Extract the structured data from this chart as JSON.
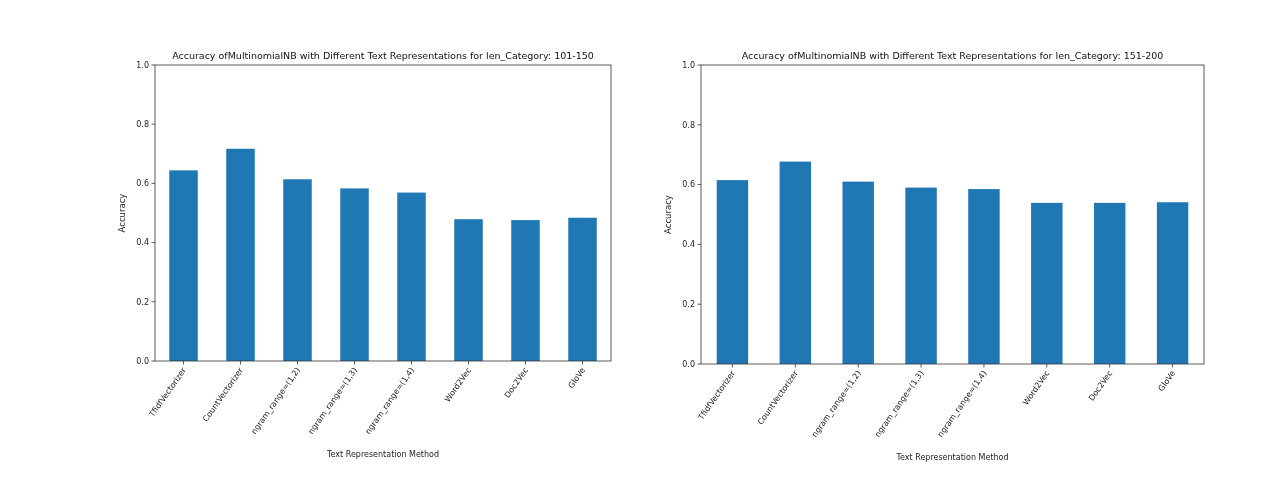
{
  "chart_data": [
    {
      "type": "bar",
      "title": "Accuracy ofMultinomialNB with Different Text Representations for len_Category: 101-150",
      "xlabel": "Text Representation Method",
      "ylabel": "Accuracy",
      "categories": [
        "TfidfVectorizer",
        "CountVectorizer",
        "ngram_range=(1,2)",
        "ngram_range=(1,3)",
        "ngram_range=(1,4)",
        "Word2Vec",
        "Doc2Vec",
        "GloVe"
      ],
      "values": [
        0.644,
        0.717,
        0.614,
        0.583,
        0.569,
        0.479,
        0.476,
        0.484
      ],
      "color": "#1f77b4",
      "ylim": [
        0,
        1
      ],
      "yticks": [
        {
          "value": 0,
          "label": "0.0"
        },
        {
          "value": 0.2,
          "label": "0.2"
        },
        {
          "value": 0.4,
          "label": "0.4"
        },
        {
          "value": 0.6,
          "label": "0.6"
        },
        {
          "value": 0.8,
          "label": "0.8"
        },
        {
          "value": 1,
          "label": "1.0"
        }
      ],
      "grid": false
    },
    {
      "type": "bar",
      "title": "Accuracy ofMultinomialNB with Different Text Representations for len_Category: 151-200",
      "xlabel": "Text Representation Method",
      "ylabel": "Accuracy",
      "categories": [
        "TfidfVectorizer",
        "CountVectorizer",
        "ngram_range=(1,2)",
        "ngram_range=(1,3)",
        "ngram_range=(1,4)",
        "Word2Vec",
        "Doc2Vec",
        "GloVe"
      ],
      "values": [
        0.615,
        0.677,
        0.61,
        0.59,
        0.585,
        0.539,
        0.539,
        0.541
      ],
      "color": "#1f77b4",
      "ylim": [
        0,
        1
      ],
      "yticks": [
        {
          "value": 0,
          "label": "0.0"
        },
        {
          "value": 0.2,
          "label": "0.2"
        },
        {
          "value": 0.4,
          "label": "0.4"
        },
        {
          "value": 0.6,
          "label": "0.6"
        },
        {
          "value": 0.8,
          "label": "0.8"
        },
        {
          "value": 1,
          "label": "1.0"
        }
      ],
      "grid": false
    }
  ]
}
